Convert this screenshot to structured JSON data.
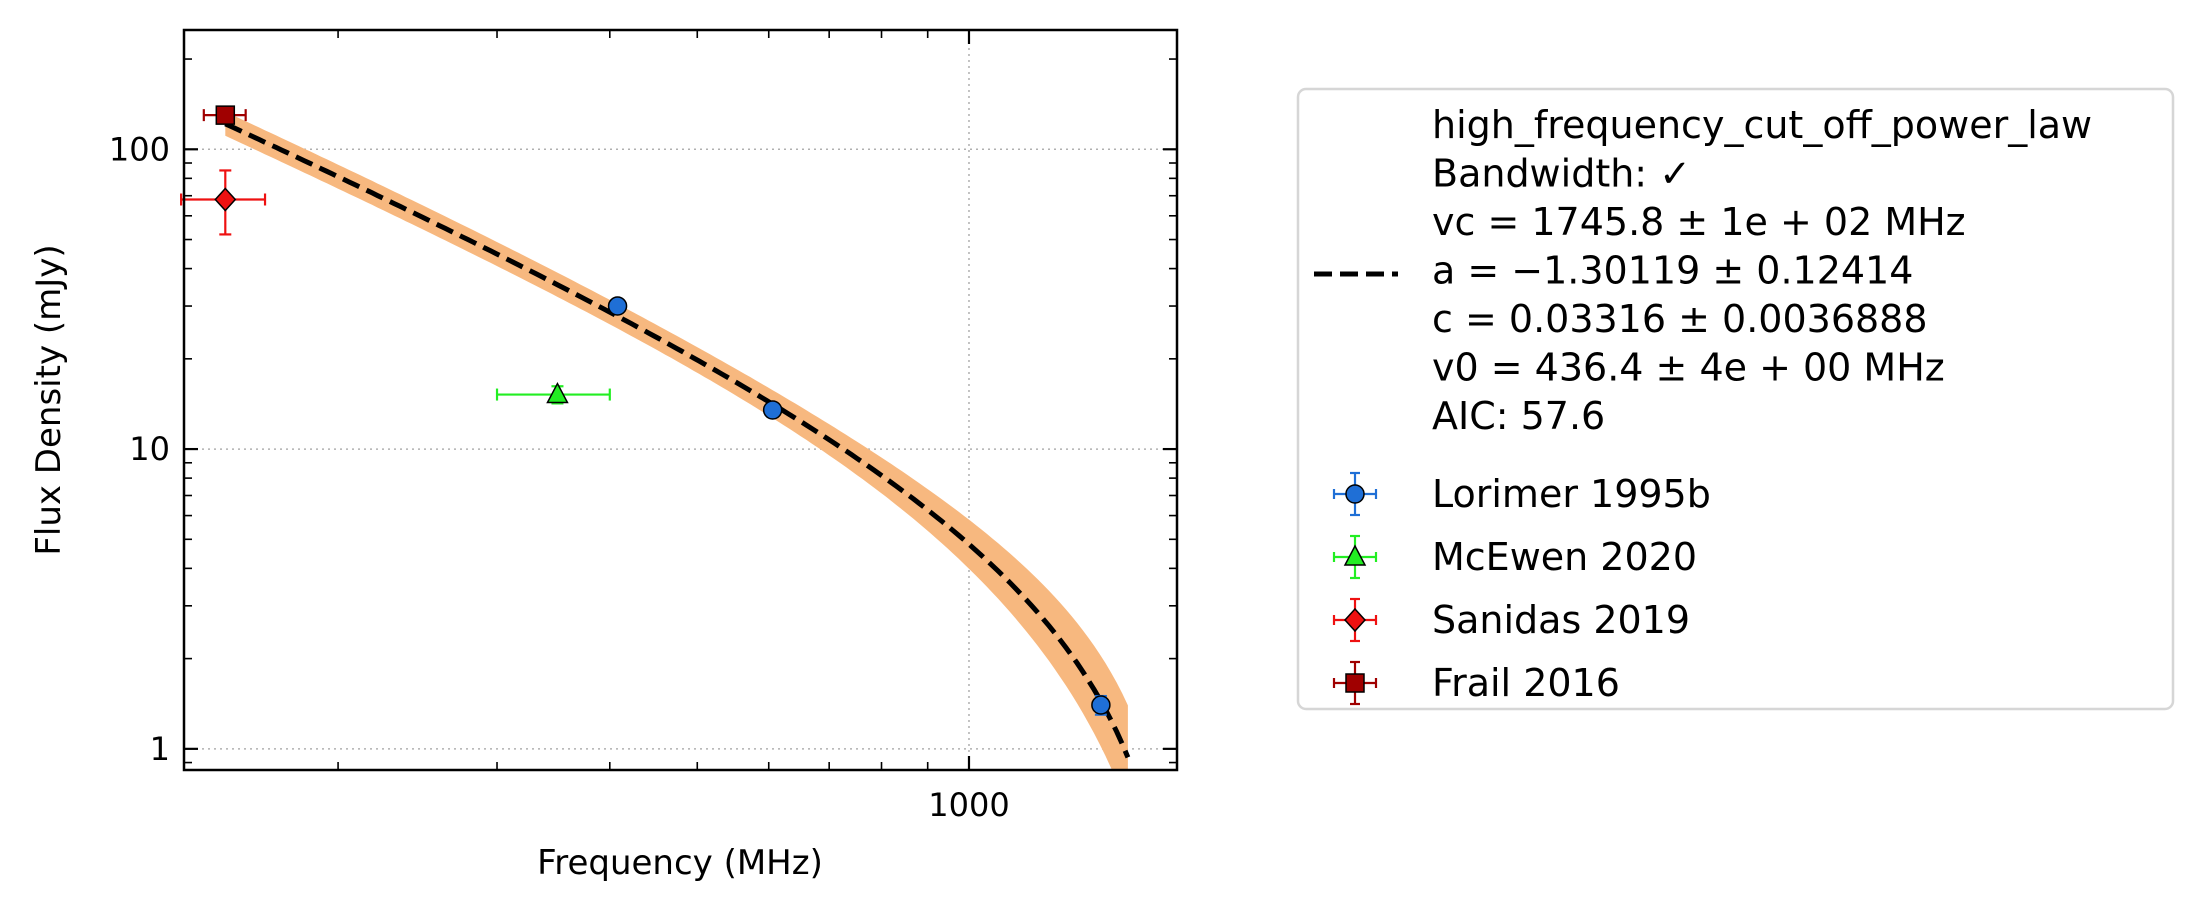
{
  "chart_data": {
    "type": "scatter",
    "xlabel": "Frequency (MHz)",
    "ylabel": "Flux Density (mJy)",
    "x_scale": "log",
    "y_scale": "log",
    "xlim": [
      135,
      1700
    ],
    "ylim": [
      0.85,
      250
    ],
    "x_tick_labels": [
      {
        "value": 1000,
        "label": "1000"
      }
    ],
    "y_tick_labels": [
      {
        "value": 1,
        "label": "1"
      },
      {
        "value": 10,
        "label": "10"
      },
      {
        "value": 100,
        "label": "100"
      }
    ],
    "grid": true,
    "legend_position": "outside right",
    "fit": {
      "name": "high_frequency_cut_off_power_law",
      "label_lines": [
        "high_frequency_cut_off_power_law",
        "Bandwidth: ✓",
        "vc = 1745.8 ± 1e + 02 MHz",
        "a = −1.30119 ± 0.12414",
        "c = 0.03316 ± 0.0036888",
        "v0 = 436.4 ± 4e + 00 MHz",
        "AIC: 57.6"
      ],
      "vc": 1745.8,
      "a": -1.30119,
      "c": 0.03316,
      "v0": 436.4,
      "x_range": [
        150,
        1500
      ],
      "line_color": "#000000",
      "band_color": "#f7b87f"
    },
    "series": [
      {
        "name": "Lorimer 1995b",
        "marker": "circle",
        "color": "#1f6fd6",
        "points": [
          {
            "x": 408,
            "y": 30,
            "yerr": 1.5
          },
          {
            "x": 606,
            "y": 13.5,
            "yerr": 0.7
          },
          {
            "x": 1400,
            "y": 1.4,
            "yerr": 0.1
          }
        ]
      },
      {
        "name": "McEwen 2020",
        "marker": "triangle",
        "color": "#22ee22",
        "points": [
          {
            "x": 350,
            "y": 15.2,
            "xerr": [
              300,
              400
            ],
            "yerr": 1.0
          }
        ]
      },
      {
        "name": "Sanidas 2019",
        "marker": "diamond",
        "color": "#ee1111",
        "points": [
          {
            "x": 150,
            "y": 68,
            "xerr": [
              134,
              166
            ],
            "yerr": [
              52,
              85
            ]
          }
        ]
      },
      {
        "name": "Frail 2016",
        "marker": "square",
        "color": "#a00000",
        "points": [
          {
            "x": 150,
            "y": 130,
            "xerr": [
              142,
              158
            ],
            "yerr": 5
          }
        ]
      }
    ]
  }
}
